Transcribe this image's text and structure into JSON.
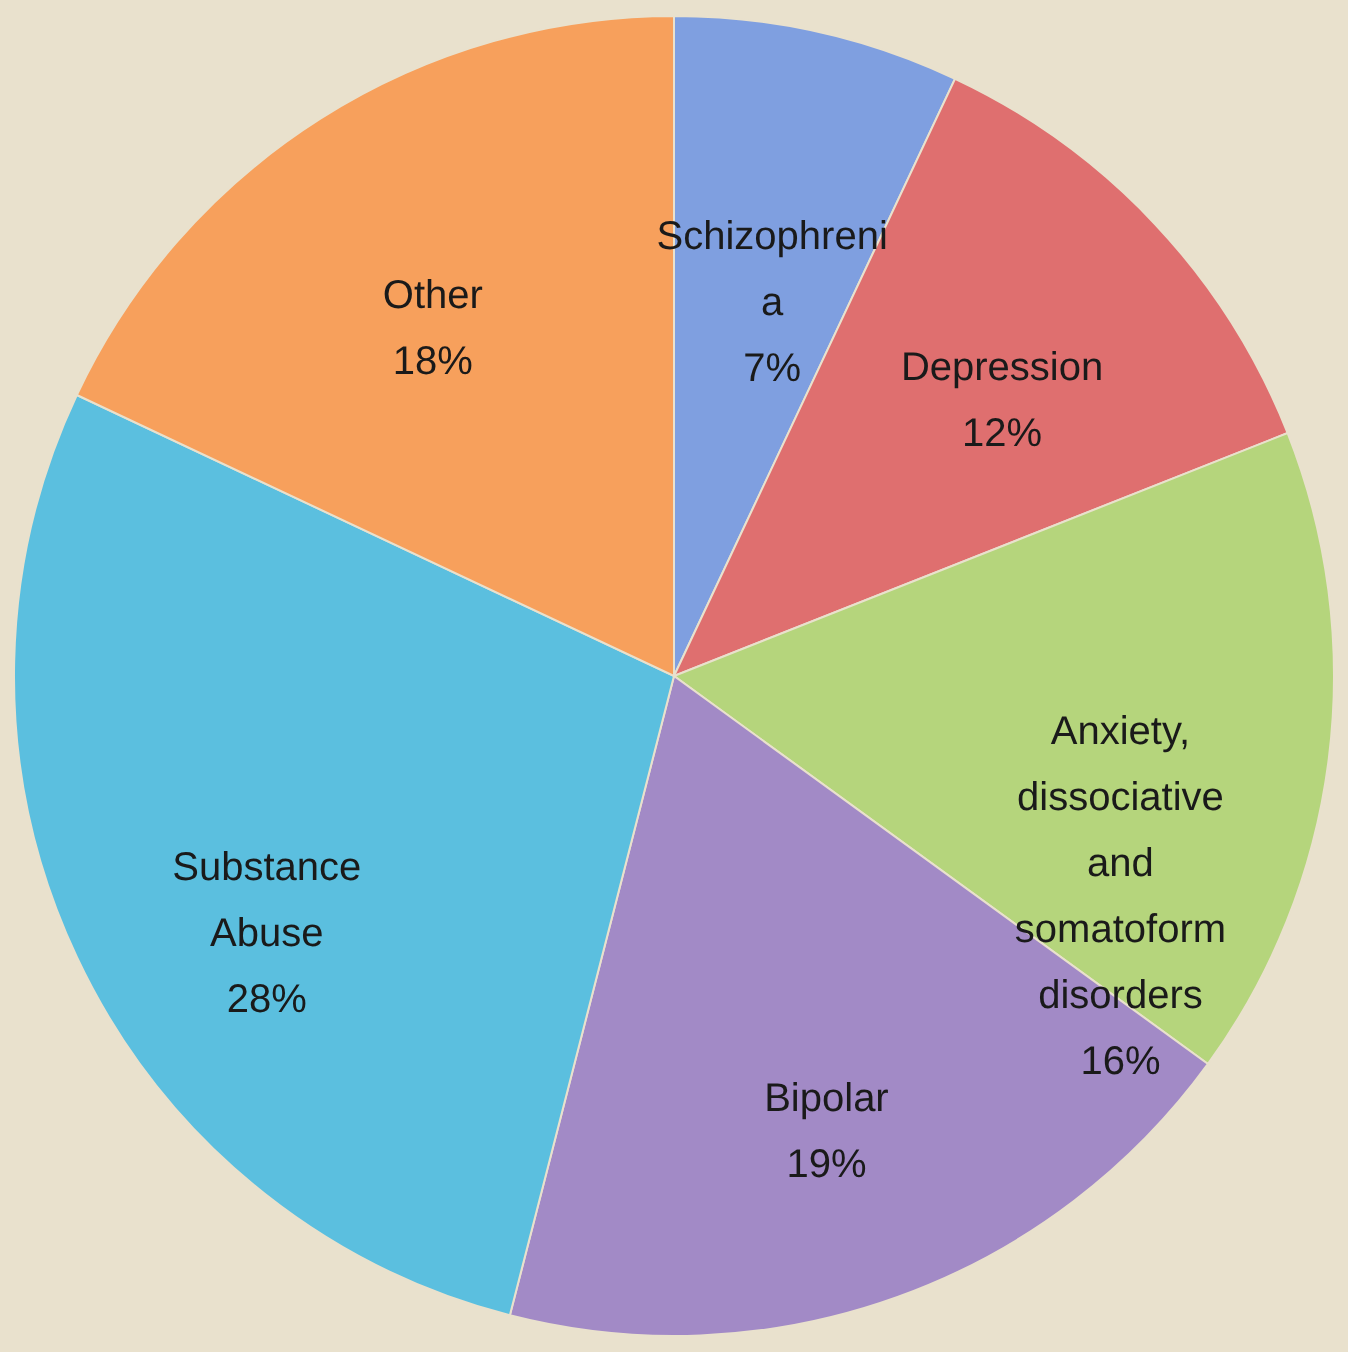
{
  "chart_data": {
    "type": "pie",
    "categories": [
      "Schizophrenia",
      "Depression",
      "Anxiety, dissociative and somatoform disorders",
      "Bipolar",
      "Substance Abuse",
      "Other"
    ],
    "values": [
      7,
      12,
      16,
      19,
      28,
      18
    ],
    "value_labels": [
      "7%",
      "12%",
      "16%",
      "19%",
      "28%",
      "18%"
    ],
    "colors": [
      "#7f9fe0",
      "#df6f6f",
      "#b5d57c",
      "#a28ac6",
      "#5bbfdf",
      "#f7a05c"
    ]
  }
}
